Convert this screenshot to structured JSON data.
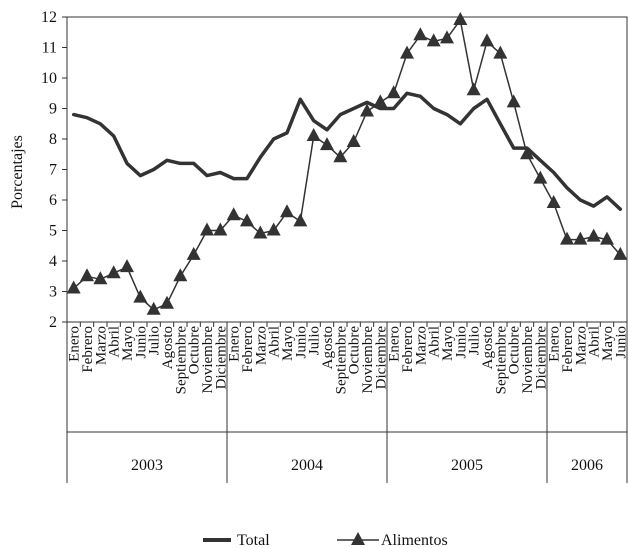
{
  "chart_data": {
    "type": "line",
    "title": "",
    "xlabel": "",
    "ylabel": "Porcentajes",
    "ylim": [
      2,
      12
    ],
    "yticks": [
      2,
      3,
      4,
      5,
      6,
      7,
      8,
      9,
      10,
      11,
      12
    ],
    "grid": false,
    "legend_position": "bottom",
    "categories": [
      "Enero",
      "Febrero",
      "Marzo",
      "Abril",
      "Mayo",
      "Junio",
      "Julio",
      "Agosto",
      "Septiembre",
      "Octubre",
      "Noviembre",
      "Diciembre",
      "Enero",
      "Febrero",
      "Marzo",
      "Abril",
      "Mayo",
      "Junio",
      "Julio",
      "Agosto",
      "Septiembre",
      "Octubre",
      "Noviembre",
      "Diciembre",
      "Enero",
      "Febrero",
      "Marzo",
      "Abril",
      "Mayo",
      "Junio",
      "Julio",
      "Agosto",
      "Septiembre",
      "Octubre",
      "Noviembre",
      "Diciembre",
      "Enero",
      "Febrero",
      "Marzo",
      "Abril",
      "Mayo",
      "Junio"
    ],
    "years": [
      {
        "label": "2003",
        "months": 12
      },
      {
        "label": "2004",
        "months": 12
      },
      {
        "label": "2005",
        "months": 12
      },
      {
        "label": "2006",
        "months": 6
      }
    ],
    "series": [
      {
        "name": "Total",
        "marker": "none",
        "color": "#333333",
        "values": [
          8.8,
          8.7,
          8.5,
          8.1,
          7.2,
          6.8,
          7.0,
          7.3,
          7.2,
          7.2,
          6.8,
          6.9,
          6.7,
          6.7,
          7.4,
          8.0,
          8.2,
          9.3,
          8.6,
          8.3,
          8.8,
          9.0,
          9.2,
          9.0,
          9.0,
          9.5,
          9.4,
          9.0,
          8.8,
          8.5,
          9.0,
          9.3,
          8.5,
          7.7,
          7.7,
          7.3,
          6.9,
          6.4,
          6.0,
          5.8,
          6.1,
          5.7
        ]
      },
      {
        "name": "Alimentos",
        "marker": "triangle",
        "color": "#333333",
        "values": [
          3.1,
          3.5,
          3.4,
          3.6,
          3.8,
          2.8,
          2.4,
          2.6,
          3.5,
          4.2,
          5.0,
          5.0,
          5.5,
          5.3,
          4.9,
          5.0,
          5.6,
          5.3,
          8.1,
          7.8,
          7.4,
          7.9,
          8.9,
          9.2,
          9.5,
          10.8,
          11.4,
          11.2,
          11.3,
          11.9,
          9.6,
          11.2,
          10.8,
          9.2,
          7.5,
          6.7,
          5.9,
          4.7,
          4.7,
          4.8,
          4.7,
          4.2
        ]
      }
    ]
  }
}
